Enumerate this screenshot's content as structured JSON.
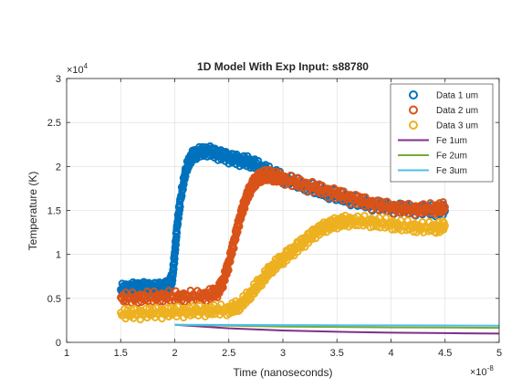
{
  "chart_data": {
    "type": "scatter",
    "title": "1D Model With Exp Input: s88780",
    "xlabel": "Time (nanoseconds)",
    "ylabel": "Temperature (K)",
    "xlim": [
      1e-08,
      5e-08
    ],
    "ylim": [
      0,
      30000
    ],
    "x_multiplier_label": "×10",
    "x_multiplier_exp": "-8",
    "y_multiplier_label": "×10",
    "y_multiplier_exp": "4",
    "x_ticks": [
      1e-08,
      1.5e-08,
      2e-08,
      2.5e-08,
      3e-08,
      3.5e-08,
      4e-08,
      4.5e-08,
      5e-08
    ],
    "x_tick_labels": [
      "1",
      "1.5",
      "2",
      "2.5",
      "3",
      "3.5",
      "4",
      "4.5",
      "5"
    ],
    "y_ticks": [
      0,
      5000,
      10000,
      15000,
      20000,
      25000,
      30000
    ],
    "y_tick_labels": [
      "0",
      "0.5",
      "1",
      "1.5",
      "2",
      "2.5",
      "3"
    ],
    "grid": true,
    "legend_position": "top-right",
    "series": [
      {
        "name": "Data 1 um",
        "style": "marker",
        "color": "#0072BD",
        "x": [
          1.5e-08,
          1.6e-08,
          1.7e-08,
          1.8e-08,
          1.9e-08,
          1.95e-08,
          1.98e-08,
          2e-08,
          2.02e-08,
          2.05e-08,
          2.1e-08,
          2.15e-08,
          2.2e-08,
          2.3e-08,
          2.4e-08,
          2.5e-08,
          2.6e-08,
          2.7e-08,
          2.8e-08,
          2.9e-08,
          3e-08,
          3.2e-08,
          3.4e-08,
          3.6e-08,
          3.8e-08,
          4e-08,
          4.2e-08,
          4.4e-08,
          4.5e-08
        ],
        "y": [
          6000,
          6200,
          6300,
          6200,
          6300,
          6500,
          7500,
          10000,
          13000,
          16000,
          19500,
          21000,
          21500,
          21800,
          21400,
          21000,
          20700,
          20500,
          19800,
          19200,
          18600,
          17800,
          17000,
          16300,
          15700,
          15300,
          15100,
          15000,
          15000
        ]
      },
      {
        "name": "Data 2 um",
        "style": "marker",
        "color": "#D95319",
        "x": [
          1.5e-08,
          1.7e-08,
          1.9e-08,
          2.1e-08,
          2.3e-08,
          2.4e-08,
          2.45e-08,
          2.5e-08,
          2.55e-08,
          2.6e-08,
          2.65e-08,
          2.7e-08,
          2.75e-08,
          2.8e-08,
          2.85e-08,
          2.9e-08,
          3e-08,
          3.2e-08,
          3.4e-08,
          3.6e-08,
          3.8e-08,
          4e-08,
          4.2e-08,
          4.4e-08,
          4.5e-08
        ],
        "y": [
          5000,
          5100,
          5200,
          5200,
          5300,
          5800,
          7000,
          9000,
          11500,
          14000,
          16000,
          17500,
          18400,
          18800,
          19000,
          18900,
          18600,
          17900,
          17200,
          16500,
          15800,
          15300,
          15100,
          15200,
          15300
        ]
      },
      {
        "name": "Data 3 um",
        "style": "marker",
        "color": "#EDB120",
        "x": [
          1.5e-08,
          1.7e-08,
          1.9e-08,
          2.1e-08,
          2.3e-08,
          2.5e-08,
          2.6e-08,
          2.7e-08,
          2.8e-08,
          2.9e-08,
          3e-08,
          3.1e-08,
          3.2e-08,
          3.3e-08,
          3.4e-08,
          3.5e-08,
          3.6e-08,
          3.8e-08,
          4e-08,
          4.2e-08,
          4.4e-08,
          4.5e-08
        ],
        "y": [
          3200,
          3300,
          3400,
          3500,
          3600,
          3700,
          4200,
          5500,
          7000,
          8500,
          9500,
          10500,
          11500,
          12500,
          13200,
          13600,
          13800,
          13700,
          13400,
          13100,
          13000,
          13200
        ]
      },
      {
        "name": "Fe 1um",
        "style": "line",
        "color": "#7E2F8E",
        "x": [
          2e-08,
          2.5e-08,
          3e-08,
          3.5e-08,
          4e-08,
          4.5e-08,
          5e-08
        ],
        "y": [
          2000,
          1600,
          1350,
          1200,
          1100,
          1050,
          1000
        ]
      },
      {
        "name": "Fe 2um",
        "style": "line",
        "color": "#77AC30",
        "x": [
          2e-08,
          2.5e-08,
          3e-08,
          3.5e-08,
          4e-08,
          4.5e-08,
          5e-08
        ],
        "y": [
          2000,
          1900,
          1800,
          1750,
          1700,
          1680,
          1650
        ]
      },
      {
        "name": "Fe 3um",
        "style": "line",
        "color": "#4DBEEE",
        "x": [
          2e-08,
          2.5e-08,
          3e-08,
          3.5e-08,
          4e-08,
          4.5e-08,
          5e-08
        ],
        "y": [
          2000,
          1980,
          1960,
          1940,
          1930,
          1920,
          1900
        ]
      }
    ]
  }
}
